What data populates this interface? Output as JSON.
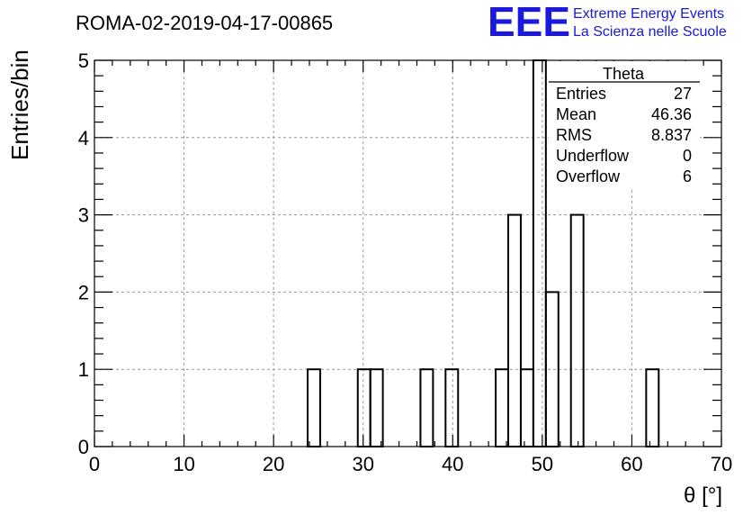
{
  "chart_data": {
    "type": "histogram",
    "title": "ROMA-02-2019-04-17-00865",
    "xlabel": "θ [°]",
    "ylabel": "Entries/bin",
    "xlim": [
      0,
      70
    ],
    "ylim": [
      0,
      5
    ],
    "grid": true,
    "x_ticks": [
      0,
      10,
      20,
      30,
      40,
      50,
      60,
      70
    ],
    "y_ticks": [
      0,
      1,
      2,
      3,
      4,
      5
    ],
    "bin_width": 1.4,
    "bins": [
      {
        "x0": 23.8,
        "x1": 25.2,
        "count": 1
      },
      {
        "x0": 29.4,
        "x1": 30.8,
        "count": 1
      },
      {
        "x0": 30.8,
        "x1": 32.2,
        "count": 1
      },
      {
        "x0": 36.4,
        "x1": 37.8,
        "count": 1
      },
      {
        "x0": 39.2,
        "x1": 40.6,
        "count": 1
      },
      {
        "x0": 44.8,
        "x1": 46.2,
        "count": 1
      },
      {
        "x0": 46.2,
        "x1": 47.6,
        "count": 3
      },
      {
        "x0": 47.6,
        "x1": 49.0,
        "count": 1
      },
      {
        "x0": 49.0,
        "x1": 50.4,
        "count": 5
      },
      {
        "x0": 50.4,
        "x1": 51.8,
        "count": 2
      },
      {
        "x0": 53.2,
        "x1": 54.6,
        "count": 3
      },
      {
        "x0": 61.6,
        "x1": 63.0,
        "count": 1
      }
    ],
    "stats": {
      "name": "Theta",
      "rows": [
        {
          "label": "Entries",
          "value": "27"
        },
        {
          "label": "Mean",
          "value": "46.36"
        },
        {
          "label": "RMS",
          "value": "8.837"
        },
        {
          "label": "Underflow",
          "value": "0"
        },
        {
          "label": "Overflow",
          "value": "6"
        }
      ]
    }
  },
  "logo": {
    "mark": "EEE",
    "line1": "Extreme Energy Events",
    "line2": "La Scienza nelle Scuole",
    "color": "#1a1adc"
  }
}
